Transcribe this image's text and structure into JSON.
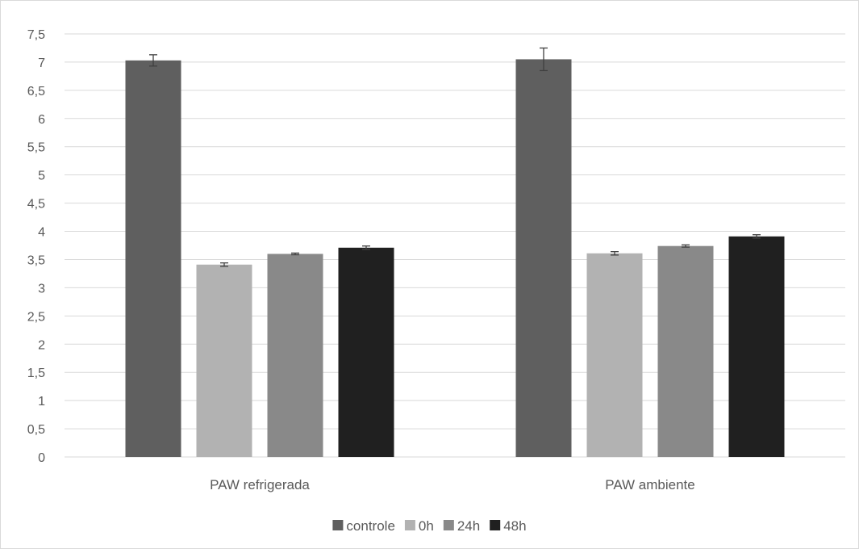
{
  "chart_data": {
    "type": "bar",
    "categories": [
      "PAW refrigerada",
      "PAW ambiente"
    ],
    "series": [
      {
        "name": "controle",
        "values": [
          7.03,
          7.05
        ],
        "errors": [
          0.1,
          0.2
        ],
        "color": "#5f5f5f"
      },
      {
        "name": "0h",
        "values": [
          3.41,
          3.61
        ],
        "errors": [
          0.03,
          0.03
        ],
        "color": "#b2b2b2"
      },
      {
        "name": "24h",
        "values": [
          3.6,
          3.74
        ],
        "errors": [
          0.015,
          0.02
        ],
        "color": "#898989"
      },
      {
        "name": "48h",
        "values": [
          3.71,
          3.91
        ],
        "errors": [
          0.03,
          0.03
        ],
        "color": "#202020"
      }
    ],
    "ylim": [
      0,
      7.5
    ],
    "yticks": [
      "0",
      "0,5",
      "1",
      "1,5",
      "2",
      "2,5",
      "3",
      "3,5",
      "4",
      "4,5",
      "5",
      "5,5",
      "6",
      "6,5",
      "7",
      "7,5"
    ],
    "grid": true,
    "legend_position": "bottom"
  }
}
